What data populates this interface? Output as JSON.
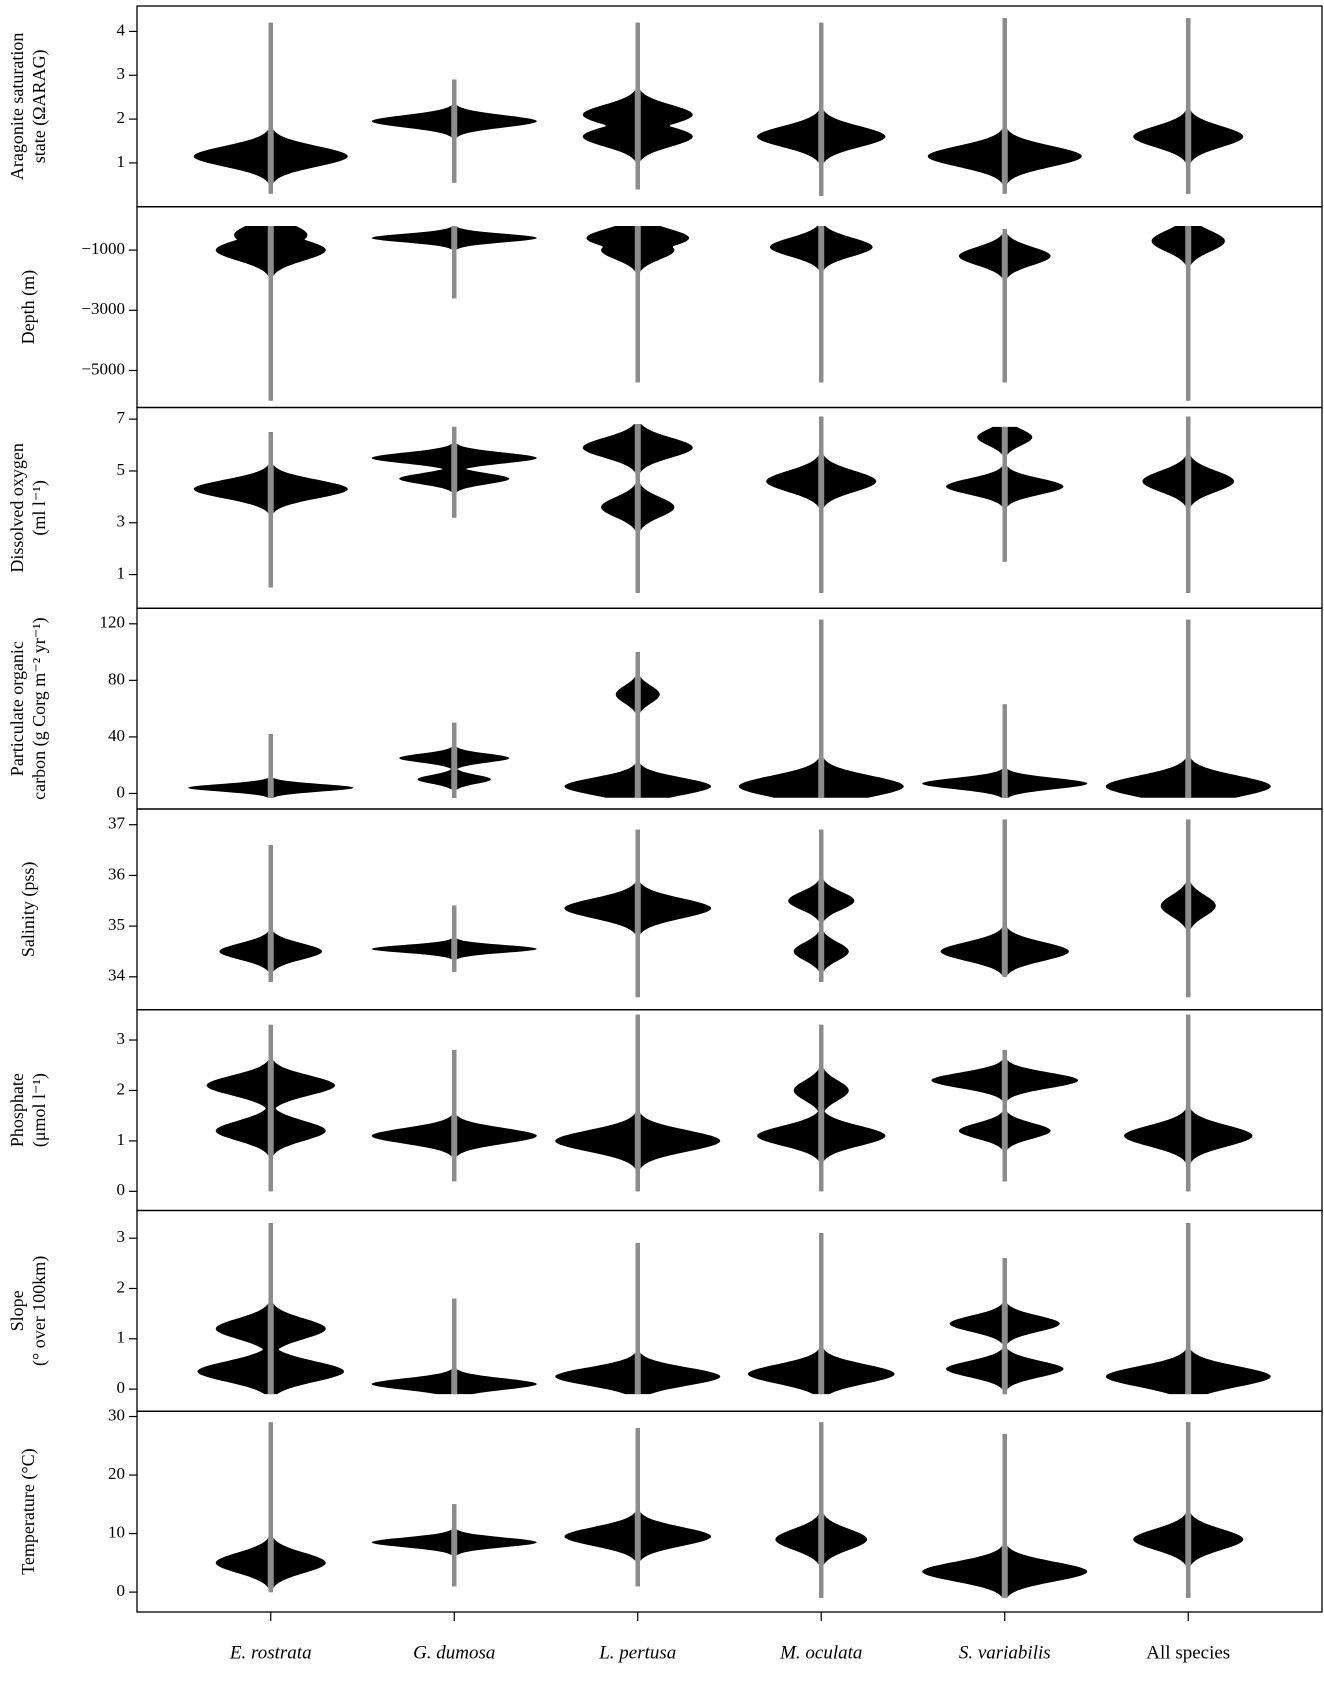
{
  "chart_data": [
    {
      "type": "violin",
      "ylabel": [
        "Aragonite saturation",
        "state  (ΩARAG)"
      ],
      "ylim": [
        0,
        4.58
      ],
      "yticks": [
        1,
        2,
        3,
        4
      ],
      "violins": [
        {
          "min": 0.3,
          "max": 4.2,
          "modes": [
            {
              "value": 1.15,
              "width": 0.42
            }
          ]
        },
        {
          "min": 0.55,
          "max": 2.9,
          "modes": [
            {
              "value": 1.95,
              "width": 0.45
            }
          ]
        },
        {
          "min": 0.4,
          "max": 4.2,
          "modes": [
            {
              "value": 2.1,
              "width": 0.3
            },
            {
              "value": 1.6,
              "width": 0.3
            }
          ]
        },
        {
          "min": 0.25,
          "max": 4.2,
          "modes": [
            {
              "value": 1.6,
              "width": 0.35
            }
          ]
        },
        {
          "min": 0.3,
          "max": 4.3,
          "modes": [
            {
              "value": 1.15,
              "width": 0.42
            }
          ]
        },
        {
          "min": 0.3,
          "max": 4.3,
          "modes": [
            {
              "value": 1.6,
              "width": 0.3
            }
          ]
        }
      ]
    },
    {
      "type": "violin",
      "ylabel": [
        "Depth (m)"
      ],
      "ylim": [
        -6230,
        440
      ],
      "yticks": [
        {
          "value": -1000,
          "label": "−1000"
        },
        {
          "value": -3000,
          "label": "−3000"
        },
        {
          "value": -5000,
          "label": "−5000"
        }
      ],
      "violins": [
        {
          "min": -6000,
          "max": -200,
          "modes": [
            {
              "value": -1000,
              "width": 0.3
            },
            {
              "value": -500,
              "width": 0.2
            }
          ]
        },
        {
          "min": -2600,
          "max": -200,
          "modes": [
            {
              "value": -600,
              "width": 0.45
            }
          ]
        },
        {
          "min": -5400,
          "max": -200,
          "modes": [
            {
              "value": -600,
              "width": 0.28
            },
            {
              "value": -1000,
              "width": 0.2
            }
          ]
        },
        {
          "min": -5400,
          "max": -200,
          "modes": [
            {
              "value": -900,
              "width": 0.28
            }
          ]
        },
        {
          "min": -5400,
          "max": -300,
          "modes": [
            {
              "value": -1200,
              "width": 0.25
            }
          ]
        },
        {
          "min": -6000,
          "max": -200,
          "modes": [
            {
              "value": -700,
              "width": 0.2
            }
          ]
        }
      ]
    },
    {
      "type": "violin",
      "ylabel": [
        "Dissolved oxygen",
        "(ml l⁻¹)"
      ],
      "ylim": [
        -0.3,
        7.45
      ],
      "yticks": [
        1,
        3,
        5,
        7
      ],
      "violins": [
        {
          "min": 0.5,
          "max": 6.5,
          "modes": [
            {
              "value": 4.3,
              "width": 0.42
            }
          ]
        },
        {
          "min": 3.2,
          "max": 6.7,
          "modes": [
            {
              "value": 5.5,
              "width": 0.45
            },
            {
              "value": 4.7,
              "width": 0.3
            }
          ]
        },
        {
          "min": 0.3,
          "max": 6.8,
          "modes": [
            {
              "value": 5.9,
              "width": 0.3
            },
            {
              "value": 3.6,
              "width": 0.2
            }
          ]
        },
        {
          "min": 0.3,
          "max": 7.1,
          "modes": [
            {
              "value": 4.6,
              "width": 0.3
            }
          ]
        },
        {
          "min": 1.5,
          "max": 6.7,
          "modes": [
            {
              "value": 4.4,
              "width": 0.32
            },
            {
              "value": 6.3,
              "width": 0.15
            }
          ]
        },
        {
          "min": 0.3,
          "max": 7.1,
          "modes": [
            {
              "value": 4.6,
              "width": 0.25
            }
          ]
        }
      ]
    },
    {
      "type": "violin",
      "ylabel": [
        "Particulate organic",
        "carbon (g Corg m⁻² yr⁻¹)"
      ],
      "ylim": [
        -11,
        131
      ],
      "yticks": [
        0,
        40,
        80,
        120
      ],
      "violins": [
        {
          "min": -3,
          "max": 42,
          "modes": [
            {
              "value": 4,
              "width": 0.45
            }
          ]
        },
        {
          "min": -3,
          "max": 50,
          "modes": [
            {
              "value": 25,
              "width": 0.3
            },
            {
              "value": 10,
              "width": 0.2
            }
          ]
        },
        {
          "min": -3,
          "max": 100,
          "modes": [
            {
              "value": 5,
              "width": 0.4
            },
            {
              "value": 70,
              "width": 0.12
            }
          ]
        },
        {
          "min": -3,
          "max": 123,
          "modes": [
            {
              "value": 5,
              "width": 0.45
            }
          ]
        },
        {
          "min": -3,
          "max": 63,
          "modes": [
            {
              "value": 7,
              "width": 0.45
            }
          ]
        },
        {
          "min": -3,
          "max": 123,
          "modes": [
            {
              "value": 5,
              "width": 0.45
            }
          ]
        }
      ]
    },
    {
      "type": "violin",
      "ylabel": [
        "Salinity (pss)"
      ],
      "ylim": [
        33.35,
        37.31
      ],
      "yticks": [
        34,
        35,
        36,
        37
      ],
      "violins": [
        {
          "min": 33.9,
          "max": 36.6,
          "modes": [
            {
              "value": 34.5,
              "width": 0.28
            }
          ]
        },
        {
          "min": 34.1,
          "max": 35.4,
          "modes": [
            {
              "value": 34.55,
              "width": 0.45
            }
          ]
        },
        {
          "min": 33.6,
          "max": 36.9,
          "modes": [
            {
              "value": 35.35,
              "width": 0.4
            }
          ]
        },
        {
          "min": 33.9,
          "max": 36.9,
          "modes": [
            {
              "value": 35.5,
              "width": 0.18
            },
            {
              "value": 34.5,
              "width": 0.15
            }
          ]
        },
        {
          "min": 34,
          "max": 37.1,
          "modes": [
            {
              "value": 34.5,
              "width": 0.35
            }
          ]
        },
        {
          "min": 33.6,
          "max": 37.1,
          "modes": [
            {
              "value": 35.4,
              "width": 0.15
            }
          ]
        }
      ]
    },
    {
      "type": "violin",
      "ylabel": [
        "Phosphate",
        "(μmol l⁻¹)"
      ],
      "ylim": [
        -0.38,
        3.6
      ],
      "yticks": [
        0,
        1,
        2,
        3
      ],
      "violins": [
        {
          "min": 0,
          "max": 3.3,
          "modes": [
            {
              "value": 2.1,
              "width": 0.35
            },
            {
              "value": 1.2,
              "width": 0.3
            }
          ]
        },
        {
          "min": 0.2,
          "max": 2.8,
          "modes": [
            {
              "value": 1.1,
              "width": 0.45
            }
          ]
        },
        {
          "min": 0,
          "max": 3.5,
          "modes": [
            {
              "value": 1,
              "width": 0.45
            }
          ]
        },
        {
          "min": 0,
          "max": 3.3,
          "modes": [
            {
              "value": 1.1,
              "width": 0.35
            },
            {
              "value": 2,
              "width": 0.15
            }
          ]
        },
        {
          "min": 0.2,
          "max": 2.8,
          "modes": [
            {
              "value": 2.2,
              "width": 0.4
            },
            {
              "value": 1.2,
              "width": 0.25
            }
          ]
        },
        {
          "min": 0,
          "max": 3.5,
          "modes": [
            {
              "value": 1.1,
              "width": 0.35
            }
          ]
        }
      ]
    },
    {
      "type": "violin",
      "ylabel": [
        "Slope",
        "(° over 100km)"
      ],
      "ylim": [
        -0.44,
        3.55
      ],
      "yticks": [
        0,
        1,
        2,
        3
      ],
      "violins": [
        {
          "min": -0.1,
          "max": 3.3,
          "modes": [
            {
              "value": 0.35,
              "width": 0.4
            },
            {
              "value": 1.2,
              "width": 0.3
            }
          ]
        },
        {
          "min": -0.1,
          "max": 1.8,
          "modes": [
            {
              "value": 0.1,
              "width": 0.45
            }
          ]
        },
        {
          "min": -0.1,
          "max": 2.9,
          "modes": [
            {
              "value": 0.25,
              "width": 0.45
            }
          ]
        },
        {
          "min": -0.1,
          "max": 3.1,
          "modes": [
            {
              "value": 0.3,
              "width": 0.4
            }
          ]
        },
        {
          "min": -0.1,
          "max": 2.6,
          "modes": [
            {
              "value": 0.4,
              "width": 0.32
            },
            {
              "value": 1.3,
              "width": 0.3
            }
          ]
        },
        {
          "min": -0.1,
          "max": 3.3,
          "modes": [
            {
              "value": 0.25,
              "width": 0.45
            }
          ]
        }
      ]
    },
    {
      "type": "violin",
      "ylabel": [
        "Temperature (°C)"
      ],
      "ylim": [
        -3.4,
        30.9
      ],
      "yticks": [
        0,
        10,
        20,
        30
      ],
      "categories": [
        "E. rostrata",
        "G. dumosa",
        "L. pertusa",
        "M. oculata",
        "S. variabilis",
        "All species"
      ],
      "violins": [
        {
          "min": 0,
          "max": 29,
          "modes": [
            {
              "value": 5,
              "width": 0.3
            }
          ]
        },
        {
          "min": 1,
          "max": 15,
          "modes": [
            {
              "value": 8.5,
              "width": 0.45
            }
          ]
        },
        {
          "min": 1,
          "max": 28,
          "modes": [
            {
              "value": 9.5,
              "width": 0.4
            }
          ]
        },
        {
          "min": -1,
          "max": 29,
          "modes": [
            {
              "value": 9,
              "width": 0.25
            }
          ]
        },
        {
          "min": -1,
          "max": 27,
          "modes": [
            {
              "value": 3.5,
              "width": 0.45
            }
          ]
        },
        {
          "min": -1,
          "max": 29,
          "modes": [
            {
              "value": 9,
              "width": 0.3
            }
          ]
        }
      ]
    }
  ]
}
